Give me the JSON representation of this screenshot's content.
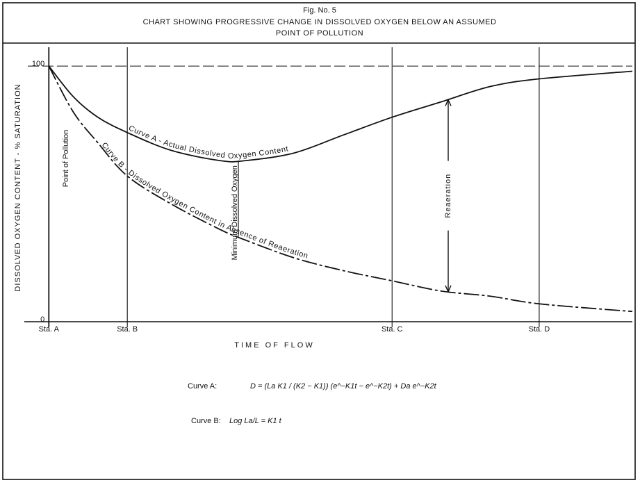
{
  "chart_data": {
    "type": "line",
    "title": "Fig. No. 5",
    "subtitle": [
      "CHART SHOWING PROGRESSIVE CHANGE IN DISSOLVED OXYGEN BELOW AN ASSUMED",
      "POINT OF POLLUTION"
    ],
    "x_label": "TIME OF FLOW",
    "y_label": "DISSOLVED OXYGEN CONTENT - % SATURATION",
    "x": [
      0,
      5,
      10,
      16,
      25,
      35,
      40,
      50,
      60,
      70,
      80,
      90,
      100,
      119
    ],
    "series": [
      {
        "name": "Curve A - Actual Dissolved Oxygen Content",
        "color": "#111111",
        "dashed": false,
        "values": [
          100,
          88,
          80,
          74,
          67,
          63,
          63,
          66,
          73,
          80,
          86,
          92,
          95,
          98
        ]
      },
      {
        "name": "Curve B - Dissolved Oxygen Content in Absence of Reaeration",
        "color": "#111111",
        "dashed": true,
        "values": [
          100,
          82,
          70,
          57,
          46,
          36,
          32,
          25,
          20,
          16,
          12,
          10,
          7,
          4
        ]
      }
    ],
    "xlim": [
      -5,
      119
    ],
    "xticks": [
      {
        "value": 0,
        "label": "Sta. A"
      },
      {
        "value": 16,
        "label": "Sta. B"
      },
      {
        "value": 70,
        "label": "Sta. C"
      },
      {
        "value": 100,
        "label": "Sta. D"
      }
    ],
    "ylim": [
      0,
      109
    ],
    "yticks": [
      0,
      100
    ],
    "annotations": [
      "Point of Pollution",
      "Minimum Dissolved Oxygen",
      "Reaeration"
    ],
    "formulas": [
      {
        "label": "Curve A:",
        "expression": "D = (La K1 / (K2 − K1)) (e^−K1t − e^−K2t) + Da e^−K2t"
      },
      {
        "label": "Curve B:",
        "expression": "Log La/L = K1 t"
      }
    ]
  }
}
